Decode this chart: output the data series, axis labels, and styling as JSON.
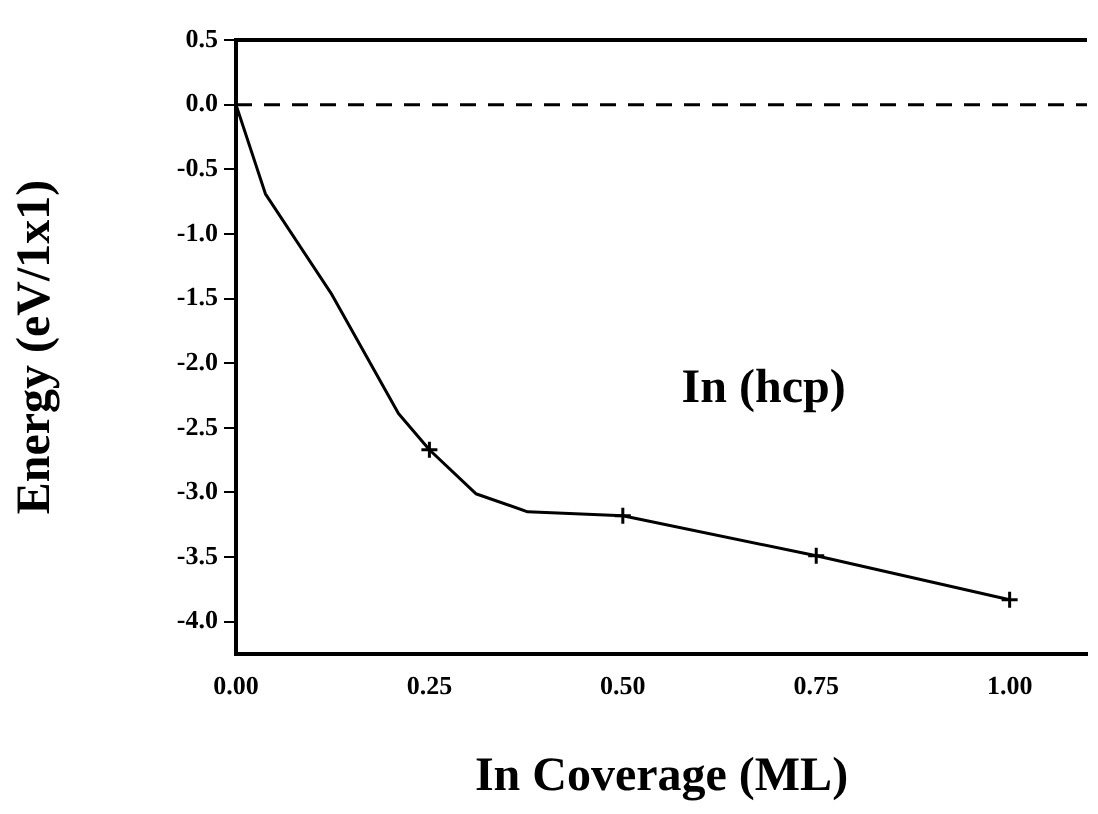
{
  "chart_data": {
    "type": "line",
    "xlabel": "In Coverage (ML)",
    "ylabel": "Energy (eV/1x1)",
    "xlim": [
      0,
      1.1
    ],
    "ylim": [
      -4.25,
      0.5
    ],
    "xticks": [
      {
        "value": 0,
        "label": "0.00"
      },
      {
        "value": 0.25,
        "label": "0.25"
      },
      {
        "value": 0.5,
        "label": "0.50"
      },
      {
        "value": 0.75,
        "label": "0.75"
      },
      {
        "value": 1,
        "label": "1.00"
      }
    ],
    "yticks": [
      0.5,
      {
        "value": 0,
        "label": "0.0"
      },
      -0.5,
      {
        "value": -1,
        "label": "-1.0"
      },
      -1.5,
      {
        "value": -2,
        "label": "-2.0"
      },
      -2.5,
      {
        "value": -3,
        "label": "-3.0"
      },
      -3.5,
      {
        "value": -4,
        "label": "-4.0"
      }
    ],
    "grid": false,
    "legend": false,
    "series": [
      {
        "color": "#000000",
        "marker": "none",
        "line_style": "solid",
        "x": [
          0,
          0.038,
          0.124,
          0.21,
          0.25,
          0.31,
          0.377,
          0.5,
          0.75,
          1.0
        ],
        "values": [
          0,
          -0.69,
          -1.47,
          -2.39,
          -2.67,
          -3.01,
          -3.15,
          -3.18,
          -3.49,
          -3.83
        ]
      },
      {
        "type": "scatter",
        "color": "#000000",
        "marker": "cross",
        "x": [
          0.25,
          0.5,
          0.75,
          1.0
        ],
        "values": [
          -2.67,
          -3.18,
          -3.49,
          -3.83
        ]
      }
    ],
    "ref_lines": [
      {
        "axis": "y",
        "value": 0,
        "color": "#000000",
        "line_style": "dashed"
      }
    ],
    "annotations": [
      "In (hcp)"
    ]
  }
}
